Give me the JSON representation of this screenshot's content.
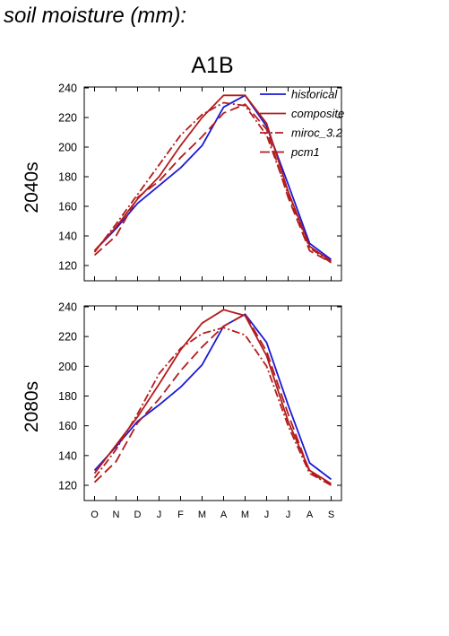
{
  "figure_title": "soil moisture (mm):",
  "chart_data": {
    "type": "line",
    "title": "A1B",
    "categories": [
      "O",
      "N",
      "D",
      "J",
      "F",
      "M",
      "A",
      "M",
      "J",
      "J",
      "A",
      "S"
    ],
    "ylim": [
      110,
      240
    ],
    "yticks": [
      120,
      140,
      160,
      180,
      200,
      220,
      240
    ],
    "grid": false,
    "legend_position": "top-right",
    "styles": {
      "historical": {
        "color": "#1a1ad6",
        "dash": "none"
      },
      "composite": {
        "color": "#b41c1c",
        "dash": "none"
      },
      "miroc_3.2": {
        "color": "#b41c1c",
        "dash": "9 3 2 3"
      },
      "pcm1": {
        "color": "#b41c1c",
        "dash": "11 5"
      }
    },
    "panels": [
      {
        "row_label": "2040s",
        "series": [
          {
            "name": "historical",
            "values": [
              130,
              145,
              162,
              174,
              186,
              201,
              227,
              235,
              214,
              175,
              135,
              124
            ]
          },
          {
            "name": "composite",
            "values": [
              130,
              146,
              165,
              180,
              201,
              220,
              235,
              235,
              216,
              170,
              133,
              123
            ]
          },
          {
            "name": "miroc_3.2",
            "values": [
              129,
              148,
              168,
              188,
              208,
              222,
              230,
              228,
              208,
              168,
              132,
              122
            ]
          },
          {
            "name": "pcm1",
            "values": [
              127,
              140,
              166,
              177,
              193,
              207,
              223,
              229,
              212,
              166,
              130,
              122
            ]
          }
        ]
      },
      {
        "row_label": "2080s",
        "series": [
          {
            "name": "historical",
            "values": [
              130,
              146,
              163,
              174,
              186,
              201,
              227,
              235,
              216,
              174,
              135,
              124
            ]
          },
          {
            "name": "composite",
            "values": [
              128,
              147,
              166,
              188,
              211,
              229,
              238,
              234,
              207,
              163,
              130,
              121
            ]
          },
          {
            "name": "miroc_3.2",
            "values": [
              125,
              144,
              168,
              195,
              212,
              222,
              226,
              221,
              200,
              160,
              128,
              120
            ]
          },
          {
            "name": "pcm1",
            "values": [
              122,
              136,
              162,
              178,
              197,
              213,
              227,
              235,
              210,
              168,
              129,
              120
            ]
          }
        ]
      }
    ]
  }
}
